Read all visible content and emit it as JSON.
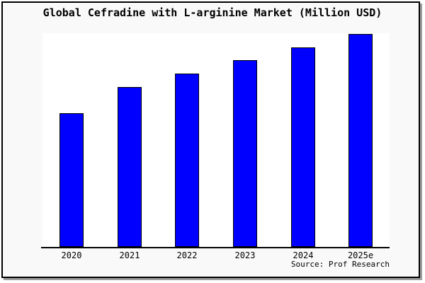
{
  "chart_data": {
    "type": "bar",
    "title": "Global Cefradine with L-arginine Market (Million USD)",
    "categories": [
      "2020",
      "2021",
      "2022",
      "2023",
      "2024",
      "2025e"
    ],
    "values": [
      188,
      225,
      244,
      263,
      281,
      300
    ],
    "ylim": [
      0,
      303
    ],
    "xlabel": "",
    "ylabel": "",
    "grid": false,
    "legend": false,
    "source": "Source: Prof Research",
    "bar_color": "#0000ff",
    "bar_border_color": "#000000"
  },
  "colors": {
    "canvas_background": "#ffffff",
    "frame_background": "#f9f9f9",
    "frame_border": "#000000",
    "frame_shadow": "#9e9e9e",
    "plot_background": "#ffffff",
    "axis": "#000000",
    "text": "#000000"
  }
}
